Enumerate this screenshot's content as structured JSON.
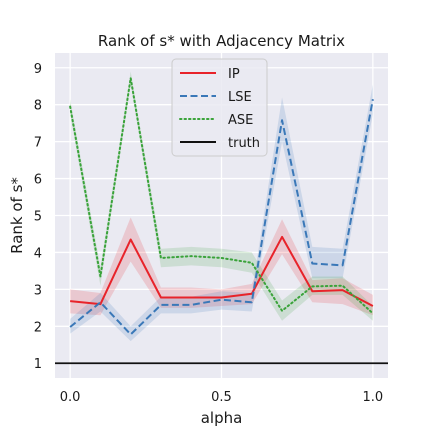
{
  "chart_data": {
    "type": "line",
    "title": "Rank of s* with Adjacency Matrix",
    "xlabel": "alpha",
    "ylabel": "Rank of s*",
    "xlim": [
      -0.05,
      1.05
    ],
    "ylim": [
      0.6,
      9.4
    ],
    "xticks": [
      "0.0",
      "0.5",
      "1.0"
    ],
    "xtick_values": [
      0.0,
      0.5,
      1.0
    ],
    "yticks": [
      "1",
      "2",
      "3",
      "4",
      "5",
      "6",
      "7",
      "8",
      "9"
    ],
    "ytick_values": [
      1,
      2,
      3,
      4,
      5,
      6,
      7,
      8,
      9
    ],
    "grid": true,
    "legend_position": "top-center",
    "x": [
      0.0,
      0.1,
      0.2,
      0.3,
      0.4,
      0.5,
      0.6,
      0.7,
      0.8,
      0.9,
      1.0
    ],
    "series": [
      {
        "name": "IP",
        "color": "#e8232a",
        "style": "solid",
        "values": [
          2.68,
          2.6,
          4.35,
          2.78,
          2.78,
          2.78,
          2.88,
          4.42,
          2.95,
          2.98,
          2.55
        ],
        "band_lower": [
          2.35,
          2.3,
          3.75,
          2.5,
          2.5,
          2.55,
          2.6,
          3.95,
          2.65,
          2.6,
          2.3
        ],
        "band_upper": [
          3.0,
          2.9,
          4.95,
          3.05,
          3.05,
          3.0,
          3.15,
          4.9,
          3.25,
          3.3,
          2.85
        ]
      },
      {
        "name": "LSE",
        "color": "#3a78b8",
        "style": "dashed",
        "values": [
          1.98,
          2.65,
          1.78,
          2.58,
          2.58,
          2.72,
          2.65,
          7.58,
          3.7,
          3.65,
          8.15
        ],
        "band_lower": [
          1.8,
          2.4,
          1.6,
          2.35,
          2.35,
          2.45,
          2.4,
          7.0,
          3.3,
          3.3,
          7.75
        ],
        "band_upper": [
          2.2,
          2.9,
          2.0,
          2.8,
          2.8,
          2.95,
          2.9,
          8.2,
          4.15,
          4.1,
          8.55
        ]
      },
      {
        "name": "ASE",
        "color": "#3aa33a",
        "style": "dotted",
        "values": [
          7.95,
          3.35,
          8.72,
          3.85,
          3.9,
          3.85,
          3.72,
          2.42,
          3.08,
          3.1,
          2.35
        ],
        "band_lower": [
          7.75,
          3.1,
          8.55,
          3.6,
          3.65,
          3.6,
          3.45,
          2.15,
          2.85,
          2.85,
          2.15
        ],
        "band_upper": [
          8.15,
          3.6,
          8.9,
          4.1,
          4.15,
          4.1,
          4.0,
          2.7,
          3.35,
          3.35,
          2.55
        ]
      },
      {
        "name": "truth",
        "color": "#111111",
        "style": "solid",
        "values": [
          1,
          1,
          1,
          1,
          1,
          1,
          1,
          1,
          1,
          1,
          1
        ]
      }
    ]
  }
}
